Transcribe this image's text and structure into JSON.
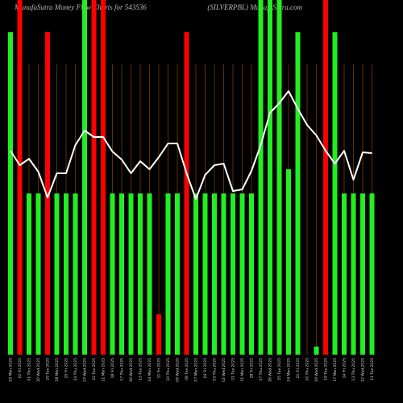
{
  "chart_data": {
    "type": "bar",
    "title": "MunafaSutra  Money Flow  Charts for 543536",
    "subtitle": "(SILVERPBL) MunafaSutra.com",
    "ylim": [
      0,
      110
    ],
    "categories": [
      "05 Mon 2025",
      "02 Fri 2025",
      "01 Thu 2025",
      "30 Wed 2025",
      "29 Tue 2025",
      "28 Mon 2025",
      "25 Fri 2025",
      "24 Thu 2025",
      "23 Wed 2025",
      "22 Tue 2025",
      "21 Mon 2025",
      "18 Fri 2025",
      "17 Thu 2025",
      "16 Wed 2025",
      "15 Tue 2025",
      "14 Mon 2025",
      "11 Fri 2025",
      "10 Thu 2025",
      "09 Wed 2025",
      "08 Tue 2025",
      "07 Mon 2025",
      "04 Fri 2025",
      "03 Thu 2025",
      "02 Wed 2025",
      "01 Tue 2025",
      "31 Mon 2025",
      "28 Fri 2025",
      "27 Thu 2025",
      "26 Wed 2025",
      "25 Tue 2025",
      "24 Mon 2025",
      "21 Fri 2025",
      "20 Thu 2025",
      "19 Wed 2025",
      "18 Tue 2025",
      "17 Mon 2025",
      "14 Fri 2025",
      "13 Thu 2025",
      "12 Wed 2025",
      "11 Tue 2025"
    ],
    "series": [
      {
        "name": "Money Flow",
        "values": [
          100,
          110,
          50,
          50,
          100,
          50,
          50,
          50,
          110,
          110,
          110,
          50,
          50,
          50,
          50,
          50,
          12.5,
          50,
          50,
          100,
          50,
          50,
          50,
          50,
          50,
          50,
          50,
          110,
          110,
          110,
          57.5,
          100,
          0,
          2.5,
          110,
          100,
          50,
          50,
          50,
          50
        ],
        "colors": [
          "#22ee22",
          "#ff0000",
          "#22ee22",
          "#22ee22",
          "#ff0000",
          "#22ee22",
          "#22ee22",
          "#22ee22",
          "#22ee22",
          "#ff0000",
          "#ff0000",
          "#22ee22",
          "#22ee22",
          "#22ee22",
          "#22ee22",
          "#22ee22",
          "#ff0000",
          "#22ee22",
          "#22ee22",
          "#ff0000",
          "#22ee22",
          "#22ee22",
          "#22ee22",
          "#22ee22",
          "#22ee22",
          "#22ee22",
          "#22ee22",
          "#22ee22",
          "#22ee22",
          "#22ee22",
          "#22ee22",
          "#22ee22",
          "#22ee22",
          "#22ee22",
          "#ff0000",
          "#22ee22",
          "#22ee22",
          "#22ee22",
          "#22ee22",
          "#22ee22"
        ]
      },
      {
        "name": "Price",
        "type": "line",
        "color": "#ffffff",
        "values": [
          63.25,
          58.75,
          60.75,
          56.75,
          48.75,
          56.25,
          56.25,
          65,
          69.5,
          67.5,
          67.5,
          63,
          60.5,
          56.25,
          60,
          57.5,
          61.25,
          65.5,
          65.5,
          56.25,
          48.25,
          55.75,
          58.75,
          59.25,
          50.75,
          51.25,
          57,
          65,
          75,
          78,
          81.75,
          76.25,
          71.25,
          68,
          63.25,
          59.25,
          63.25,
          54.25,
          62.75,
          62.5
        ]
      }
    ]
  }
}
